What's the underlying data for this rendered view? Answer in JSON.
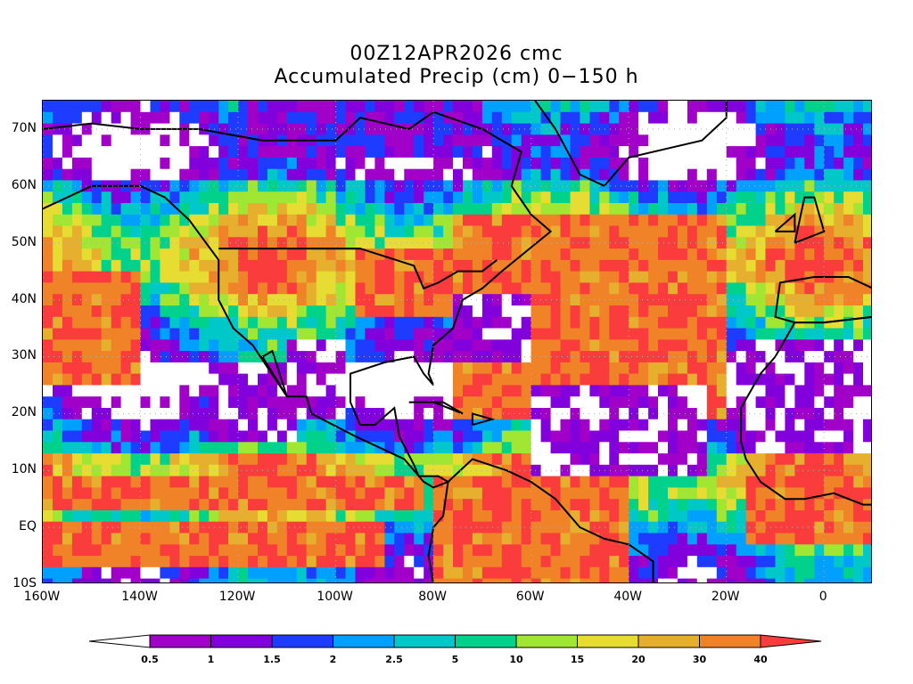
{
  "title": {
    "line1": "00Z12APR2026 cmc",
    "line2": "Accumulated Precip (cm) 0−150 h"
  },
  "axes": {
    "lat_labels": [
      "70N",
      "60N",
      "50N",
      "40N",
      "30N",
      "20N",
      "10N",
      "EQ",
      "10S"
    ],
    "lon_labels": [
      "160W",
      "140W",
      "120W",
      "100W",
      "80W",
      "60W",
      "40W",
      "20W",
      "0"
    ],
    "lat_values": [
      70,
      60,
      50,
      40,
      30,
      20,
      10,
      0,
      -10
    ],
    "lon_values": [
      -160,
      -140,
      -120,
      -100,
      -80,
      -60,
      -40,
      -20,
      0
    ],
    "lat_range": [
      -10,
      75
    ],
    "lon_range": [
      -160,
      10
    ],
    "grid": "dotted"
  },
  "colorbar": {
    "levels": [
      "0.5",
      "1",
      "1.5",
      "2",
      "2.5",
      "5",
      "10",
      "15",
      "20",
      "30",
      "40"
    ],
    "colors": [
      "#ffffff",
      "#a000c8",
      "#8200dc",
      "#1e3cff",
      "#00a0ff",
      "#00c8c8",
      "#00d28c",
      "#a0e632",
      "#e6dc32",
      "#e6af2d",
      "#f08228",
      "#fa3c3c"
    ]
  },
  "map": {
    "field": "accumulated precipitation",
    "units": "cm",
    "regions": [
      {
        "name": "itcz-pacific",
        "lon": [
          -160,
          -82
        ],
        "lat": [
          3,
          9
        ],
        "cat": 11
      },
      {
        "name": "south-pacific-band",
        "lon": [
          -160,
          -90
        ],
        "lat": [
          -6,
          0
        ],
        "cat": 11
      },
      {
        "name": "atlantic-storm-track",
        "lon": [
          -75,
          -20
        ],
        "lat": [
          20,
          55
        ],
        "cat": 11
      },
      {
        "name": "eastern-us",
        "lon": [
          -95,
          -65
        ],
        "lat": [
          38,
          48
        ],
        "cat": 11
      },
      {
        "name": "northeast-pacific",
        "lon": [
          -160,
          -140
        ],
        "lat": [
          25,
          45
        ],
        "cat": 11
      },
      {
        "name": "south-america",
        "lon": [
          -80,
          -40
        ],
        "lat": [
          -10,
          8
        ],
        "cat": 11
      },
      {
        "name": "west-africa-guinea",
        "lon": [
          -15,
          10
        ],
        "lat": [
          -2,
          8
        ],
        "cat": 11
      },
      {
        "name": "dry-subtropical-pacific",
        "lon": [
          -125,
          -108
        ],
        "lat": [
          16,
          28
        ],
        "cat": 0
      },
      {
        "name": "dry-sahara",
        "lon": [
          -17,
          10
        ],
        "lat": [
          14,
          33
        ],
        "cat": 0
      },
      {
        "name": "dry-atlantic",
        "lon": [
          -60,
          -25
        ],
        "lat": [
          10,
          25
        ],
        "cat": 0
      },
      {
        "name": "dry-mexico",
        "lon": [
          -110,
          -98
        ],
        "lat": [
          20,
          32
        ],
        "cat": 0
      },
      {
        "name": "dry-west-of-bermuda",
        "lon": [
          -75,
          -60
        ],
        "lat": [
          30,
          40
        ],
        "cat": 0
      },
      {
        "name": "dry-arctic",
        "lon": [
          -120,
          -70
        ],
        "lat": [
          65,
          75
        ],
        "cat": 1
      }
    ]
  }
}
